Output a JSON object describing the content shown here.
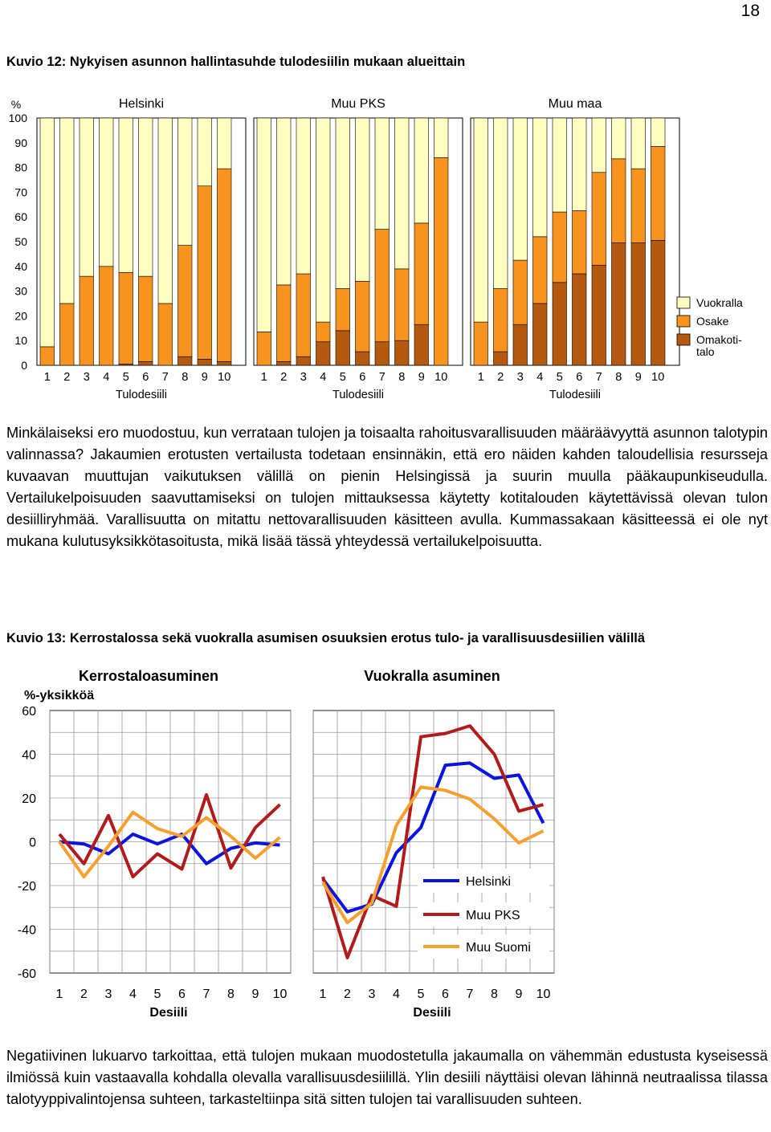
{
  "page_number": "18",
  "figure12": {
    "title": "Kuvio 12: Nykyisen asunnon hallintasuhde tulodesiilin mukaan alueittain"
  },
  "paragraph1": "Minkälaiseksi ero muodostuu, kun verrataan tulojen ja toisaalta rahoitusvarallisuuden määrää­vyyttä asunnon talotypin valinnassa? Jakaumien erotusten vertailusta todetaan ensinnäkin, että ero näiden kahden taloudellisia resursseja kuvaavan muuttujan vaikutuksen välillä on pienin Helsingissä ja suurin muulla pääkaupunkiseudulla. Vertailukelpoisuuden saavuttamiseksi on tulojen mittauksessa käytetty kotitalouden käytettävissä olevan tulon desiilliryhmää. Varallisuutta on mitattu nettovarallisuuden käsitteen avulla. Kummassakaan käsitteessä ei ole nyt mukana kulutusyksikkötasoitusta, mikä lisää tässä yhteydessä vertailukelpoisuutta.",
  "figure13": {
    "title": "Kuvio 13: Kerrostalossa sekä vuokralla asumisen osuuksien erotus tulo- ja varallisuusdesiilien välillä"
  },
  "paragraph2": "Negatiivinen lukuarvo tarkoittaa, että tulojen mukaan muodostetulla jakaumalla on vähemmän edustusta kyseisessä ilmiössä kuin vastaavalla kohdalla olevalla varallisuusdesiilillä. Ylin desiili näyttäisi olevan lähinnä neutraalissa tilassa talotyyppivalintojensa suhteen, tarkasteltiinpa sitä sitten tulojen tai varallisuuden suhteen.",
  "colors": {
    "vuokralla": "#FFFFC0",
    "osake": "#F7931E",
    "omakotitalo": "#B35A10",
    "helsinki": "#0A14DC",
    "muu_pks": "#B01C1C",
    "muu_suomi": "#F7A030"
  },
  "chart_data": [
    {
      "type": "bar",
      "stacked": true,
      "ylabel": "%",
      "ylim": [
        0,
        100
      ],
      "yticks": [
        100,
        90,
        80,
        70,
        60,
        50,
        40,
        30,
        20,
        10,
        0
      ],
      "legend": [
        "Vuokralla",
        "Osake",
        "Omakoti-\ntalo"
      ],
      "panels": [
        {
          "title": "Helsinki",
          "xlabel": "Tulodesiili",
          "categories": [
            "1",
            "2",
            "3",
            "4",
            "5",
            "6",
            "7",
            "8",
            "9",
            "10"
          ],
          "series": [
            {
              "name": "Omakoti-\ntalo",
              "values": [
                0,
                0,
                0,
                0,
                0.5,
                1.5,
                0,
                3.5,
                2.5,
                1.5
              ]
            },
            {
              "name": "Osake",
              "values": [
                7.5,
                25,
                36,
                40,
                37,
                34.5,
                25,
                45,
                70,
                78
              ]
            },
            {
              "name": "Vuokralla",
              "values": [
                92.5,
                75,
                64,
                60,
                62.5,
                64,
                75,
                51.5,
                27.5,
                20.5
              ]
            }
          ]
        },
        {
          "title": "Muu PKS",
          "xlabel": "Tulodesiili",
          "categories": [
            "1",
            "2",
            "3",
            "4",
            "5",
            "6",
            "7",
            "8",
            "9",
            "10"
          ],
          "series": [
            {
              "name": "Omakoti-\ntalo",
              "values": [
                0,
                1.5,
                3.5,
                9.5,
                14,
                5.5,
                9.5,
                10,
                16.5,
                0
              ]
            },
            {
              "name": "Osake",
              "values": [
                13.5,
                31,
                33.5,
                8,
                17,
                28.5,
                45.5,
                29,
                41,
                84
              ]
            },
            {
              "name": "Vuokralla",
              "values": [
                86.5,
                67.5,
                63,
                82.5,
                69,
                66,
                45,
                61,
                42.5,
                16
              ]
            }
          ]
        },
        {
          "title": "Muu maa",
          "xlabel": "Tulodesiili",
          "categories": [
            "1",
            "2",
            "3",
            "4",
            "5",
            "6",
            "7",
            "8",
            "9",
            "10"
          ],
          "series": [
            {
              "name": "Omakoti-\ntalo",
              "values": [
                0,
                5.5,
                16.5,
                25,
                33.5,
                37,
                40.5,
                49.5,
                49.5,
                50.5
              ]
            },
            {
              "name": "Osake",
              "values": [
                17.5,
                25.5,
                26,
                27,
                28.5,
                25.5,
                37.5,
                34,
                30,
                38
              ]
            },
            {
              "name": "Vuokralla",
              "values": [
                82.5,
                69,
                57.5,
                48,
                38,
                37.5,
                22,
                16.5,
                20.5,
                11.5
              ]
            }
          ]
        }
      ]
    },
    {
      "type": "line",
      "ylabel": "%-yksikköä",
      "ylim": [
        -60,
        60
      ],
      "yticks": [
        60,
        40,
        20,
        0,
        -20,
        -40,
        -60
      ],
      "legend": [
        "Helsinki",
        "Muu PKS",
        "Muu Suomi"
      ],
      "panels": [
        {
          "title": "Kerrostaloasuminen",
          "xlabel": "Desiili",
          "x": [
            "1",
            "2",
            "3",
            "4",
            "5",
            "6",
            "7",
            "8",
            "9",
            "10"
          ],
          "series": [
            {
              "name": "Helsinki",
              "values": [
                0,
                -1,
                -5.5,
                3.5,
                -1,
                3.5,
                -10,
                -3,
                -0.5,
                -1.5
              ]
            },
            {
              "name": "Muu PKS",
              "values": [
                3.5,
                -10,
                12,
                -16,
                -5.5,
                -12.5,
                21.5,
                -12,
                6.5,
                17
              ]
            },
            {
              "name": "Muu Suomi",
              "values": [
                0,
                -16,
                -2,
                13.5,
                6,
                2.5,
                11,
                2.5,
                -7.5,
                2
              ]
            }
          ]
        },
        {
          "title": "Vuokralla asuminen",
          "xlabel": "Desiili",
          "x": [
            "1",
            "2",
            "3",
            "4",
            "5",
            "6",
            "7",
            "8",
            "9",
            "10"
          ],
          "series": [
            {
              "name": "Helsinki",
              "values": [
                -17,
                -32,
                -28.5,
                -5,
                6.5,
                35,
                36,
                29,
                30.5,
                8.5
              ]
            },
            {
              "name": "Muu PKS",
              "values": [
                -16,
                -53,
                -24.5,
                -29.5,
                48,
                49.5,
                53,
                40,
                14,
                17
              ]
            },
            {
              "name": "Muu Suomi",
              "values": [
                -18.5,
                -37,
                -28,
                7.5,
                25,
                23.5,
                19.5,
                10.5,
                -0.5,
                5
              ]
            }
          ]
        }
      ]
    }
  ]
}
